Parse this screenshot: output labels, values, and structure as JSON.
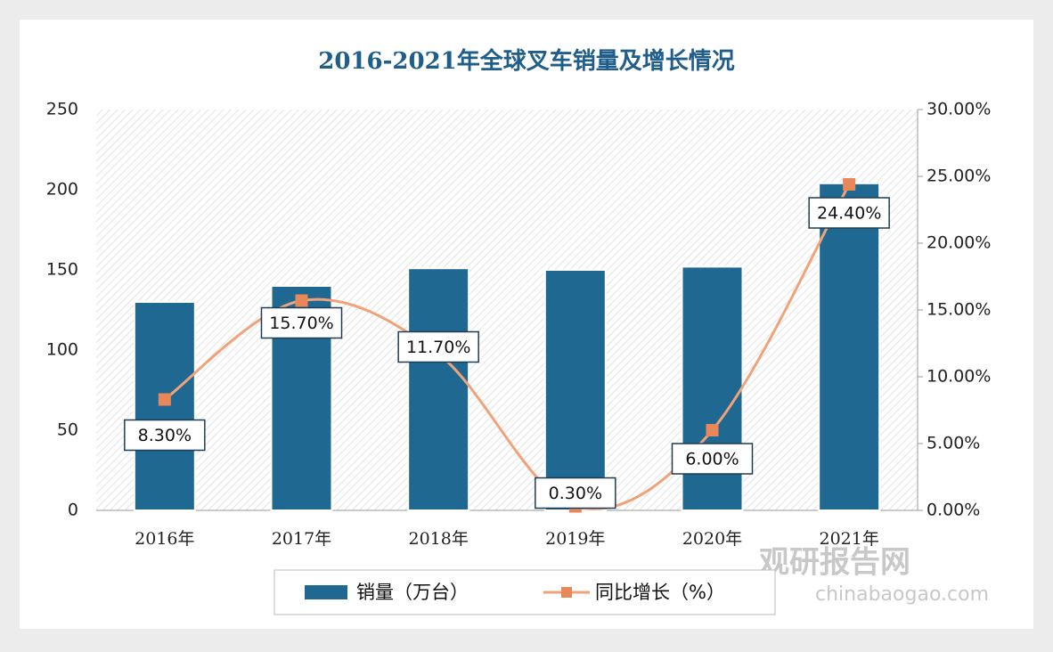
{
  "chart_data": {
    "type": "bar-line",
    "title": "2016-2021年全球叉车销量及增长情况",
    "categories": [
      "2016年",
      "2017年",
      "2018年",
      "2019年",
      "2020年",
      "2021年"
    ],
    "series": [
      {
        "name": "销量（万台）",
        "color": "#1f6891",
        "values": [
          130,
          140,
          151,
          150,
          152,
          204
        ]
      },
      {
        "name": "同比增长（%）",
        "color": "#f0a27a",
        "axis": "y2",
        "values": [
          8.3,
          15.7,
          11.7,
          0.3,
          6.0,
          24.4
        ],
        "value_labels": [
          "8.30%",
          "15.70%",
          "11.70%",
          "0.30%",
          "6.00%",
          "24.40%"
        ]
      }
    ],
    "ylim": [
      0,
      250
    ],
    "yticks": [
      0,
      50,
      100,
      150,
      200,
      250
    ],
    "y2lim": [
      0,
      30
    ],
    "y2ticks": [
      {
        "value": 0,
        "label": "0.00%"
      },
      {
        "value": 5,
        "label": "5.00%"
      },
      {
        "value": 10,
        "label": "10.00%"
      },
      {
        "value": 15,
        "label": "15.00%"
      },
      {
        "value": 20,
        "label": "20.00%"
      },
      {
        "value": 25,
        "label": "25.00%"
      },
      {
        "value": 30,
        "label": "30.00%"
      }
    ],
    "legend": "bottom"
  },
  "watermark": {
    "name": "观研报告网",
    "url": "chinabaogao.com"
  }
}
